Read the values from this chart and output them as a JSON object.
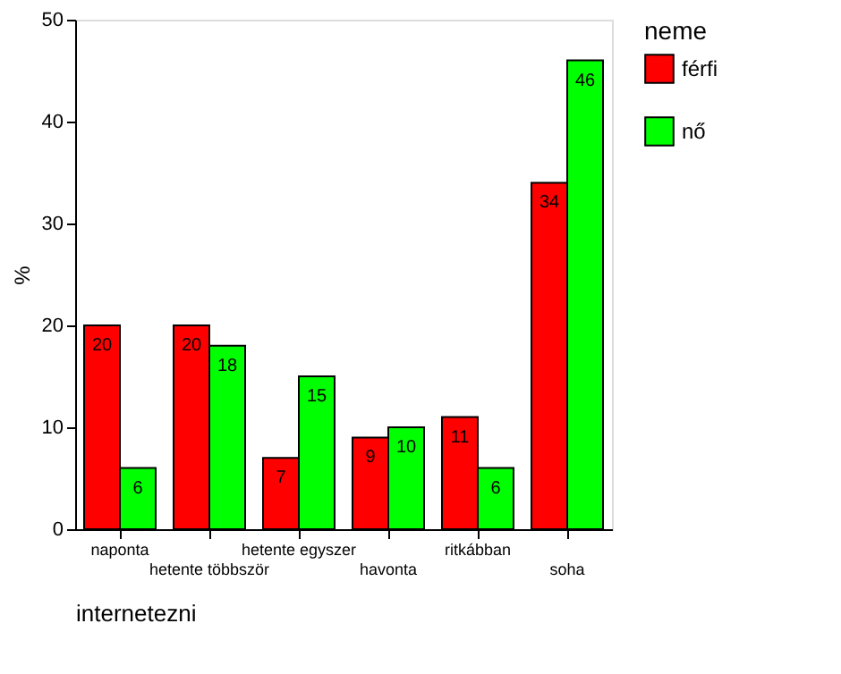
{
  "chart_data": {
    "type": "bar",
    "xlabel": "internetezni",
    "ylabel": "%",
    "legend_title": "neme",
    "categories": [
      "naponta",
      "hetente többször",
      "hetente egyszer",
      "havonta",
      "ritkábban",
      "soha"
    ],
    "series": [
      {
        "name": "férfi",
        "color": "#ff0000",
        "values": [
          20,
          20,
          7,
          9,
          11,
          34
        ]
      },
      {
        "name": "nő",
        "color": "#00ff00",
        "values": [
          6,
          18,
          15,
          10,
          6,
          46
        ]
      }
    ],
    "ylim": [
      0,
      50
    ],
    "yticks": [
      0,
      10,
      20,
      30,
      40,
      50
    ],
    "grid": false,
    "legend": "right",
    "data_labels": true
  }
}
